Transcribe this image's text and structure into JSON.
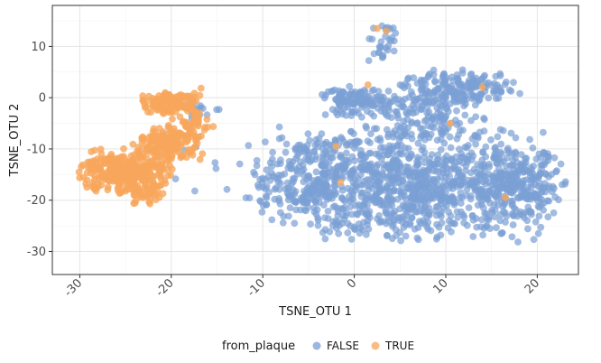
{
  "chart_data": {
    "type": "scatter",
    "xlabel": "TSNE_OTU 1",
    "ylabel": "TSNE_OTU 2",
    "xlim": [
      -33,
      24.5
    ],
    "ylim": [
      -34.5,
      18
    ],
    "x_ticks": [
      -30,
      -20,
      -10,
      0,
      10,
      20
    ],
    "x_tick_labels": [
      "-30",
      "-20",
      "-10",
      "0",
      "10",
      "20"
    ],
    "y_ticks": [
      -30,
      -20,
      -10,
      0,
      10
    ],
    "y_tick_labels": [
      "-30",
      "-20",
      "-10",
      "0",
      "10"
    ],
    "grid": true,
    "legend": {
      "title": "from_plaque",
      "position": "bottom",
      "entries": [
        {
          "label": "FALSE",
          "color": "#7b9fd4"
        },
        {
          "label": "TRUE",
          "color": "#f7a65b"
        }
      ]
    },
    "series": [
      {
        "name": "FALSE",
        "color": "#7b9fd4",
        "opacity": 0.7,
        "clusters": [
          {
            "cx": 6.5,
            "cy": -17.0,
            "sx": 8.2,
            "sy": 6.2,
            "n": 950
          },
          {
            "cx": -4.5,
            "cy": -16.0,
            "sx": 4.0,
            "sy": 5.0,
            "n": 230
          },
          {
            "cx": 18.0,
            "cy": -17.5,
            "sx": 2.8,
            "sy": 3.8,
            "n": 220
          },
          {
            "cx": 0.5,
            "cy": -0.8,
            "sx": 2.6,
            "sy": 1.6,
            "n": 130
          },
          {
            "cx": 11.5,
            "cy": 1.8,
            "sx": 3.6,
            "sy": 2.0,
            "n": 190
          },
          {
            "cx": 8.0,
            "cy": -4.0,
            "sx": 3.5,
            "sy": 2.5,
            "n": 110
          },
          {
            "cx": 3.0,
            "cy": 11.0,
            "sx": 1.2,
            "sy": 2.2,
            "n": 30
          },
          {
            "cx": -10.5,
            "cy": -20.5,
            "sx": 1.0,
            "sy": 0.8,
            "n": 6
          },
          {
            "cx": -17.0,
            "cy": -2.5,
            "sx": 1.4,
            "sy": 1.0,
            "n": 14
          },
          {
            "cx": -16.0,
            "cy": -14.0,
            "sx": 3.0,
            "sy": 3.0,
            "n": 8
          }
        ]
      },
      {
        "name": "TRUE",
        "color": "#f7a65b",
        "opacity": 0.8,
        "clusters": [
          {
            "cx": -25.0,
            "cy": -14.5,
            "sx": 2.8,
            "sy": 2.6,
            "n": 320
          },
          {
            "cx": -20.5,
            "cy": -9.0,
            "sx": 2.2,
            "sy": 2.0,
            "n": 150
          },
          {
            "cx": -20.0,
            "cy": -1.0,
            "sx": 2.0,
            "sy": 1.3,
            "n": 130
          },
          {
            "cx": -18.0,
            "cy": -5.5,
            "sx": 1.5,
            "sy": 1.5,
            "n": 40
          },
          {
            "cx": -23.0,
            "cy": -19.0,
            "sx": 1.5,
            "sy": 1.0,
            "n": 25
          }
        ],
        "outliers": [
          [
            -2.0,
            -9.5
          ],
          [
            -1.5,
            -16.5
          ],
          [
            1.5,
            2.5
          ],
          [
            3.5,
            13.0
          ],
          [
            2.5,
            13.5
          ],
          [
            10.5,
            -5.0
          ],
          [
            14.0,
            2.0
          ],
          [
            16.5,
            -19.5
          ]
        ]
      }
    ]
  }
}
